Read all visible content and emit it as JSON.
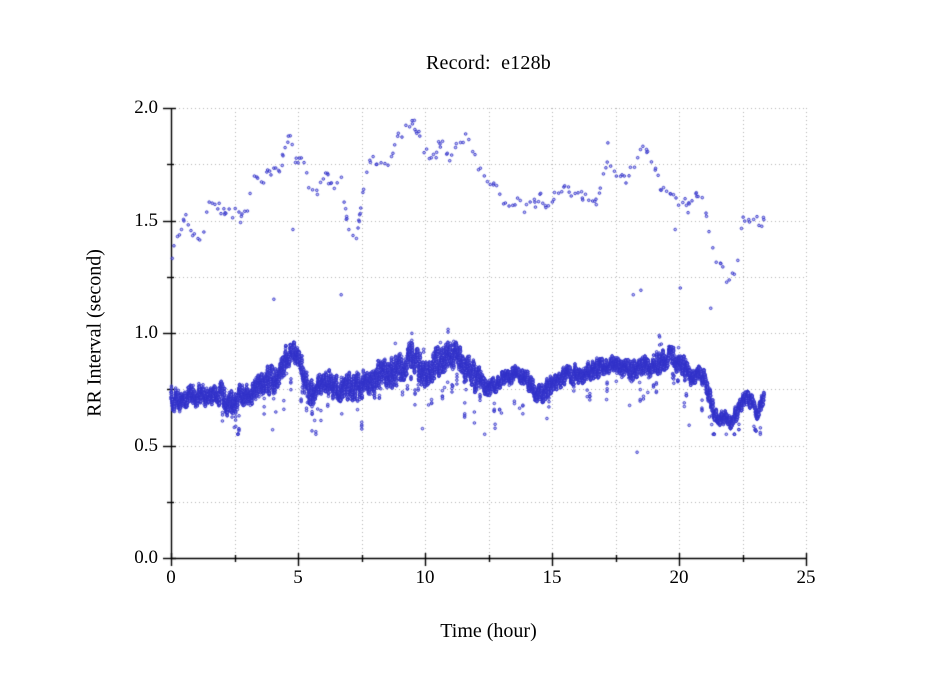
{
  "chart_data": {
    "type": "scatter",
    "title": "Record:  e128b",
    "xlabel": "Time (hour)",
    "ylabel": "RR Interval (second)",
    "xlim": [
      0,
      25
    ],
    "ylim": [
      0.0,
      2.0
    ],
    "x_major_ticks": [
      0,
      5,
      10,
      15,
      20,
      25
    ],
    "x_tick_labels": [
      "0",
      "5",
      "10",
      "15",
      "20",
      "25"
    ],
    "x_minor_step": 2.5,
    "y_major_ticks": [
      0.0,
      0.5,
      1.0,
      1.5,
      2.0
    ],
    "y_tick_labels": [
      "0.0",
      "0.5",
      "1.0",
      "1.5",
      "2.0"
    ],
    "y_minor_step": 0.25,
    "grid": {
      "on": true,
      "style": "dotted",
      "color": "#b4b4b4"
    },
    "legend": "none",
    "marker": {
      "shape": "open-circle",
      "color": "#3030c8",
      "radius_px": 1.3
    },
    "time_range_hours": [
      0,
      23.35
    ],
    "series": [
      {
        "name": "RR intervals (normal beats, dense band)",
        "role": "band",
        "approx_points": 11000,
        "trend_t_center_halfwidth": [
          [
            0.0,
            0.72,
            0.07
          ],
          [
            0.4,
            0.705,
            0.06
          ],
          [
            0.8,
            0.715,
            0.065
          ],
          [
            1.2,
            0.7,
            0.068
          ],
          [
            1.6,
            0.675,
            0.06
          ],
          [
            2.0,
            0.715,
            0.075
          ],
          [
            2.4,
            0.69,
            0.078
          ],
          [
            2.8,
            0.73,
            0.075
          ],
          [
            3.2,
            0.75,
            0.078
          ],
          [
            3.6,
            0.77,
            0.08
          ],
          [
            4.0,
            0.79,
            0.085
          ],
          [
            4.4,
            0.86,
            0.075
          ],
          [
            4.8,
            0.895,
            0.06
          ],
          [
            5.1,
            0.84,
            0.075
          ],
          [
            5.4,
            0.74,
            0.08
          ],
          [
            5.7,
            0.71,
            0.075
          ],
          [
            6.0,
            0.75,
            0.075
          ],
          [
            6.4,
            0.73,
            0.075
          ],
          [
            6.8,
            0.74,
            0.08
          ],
          [
            7.2,
            0.77,
            0.085
          ],
          [
            7.6,
            0.79,
            0.085
          ],
          [
            8.0,
            0.795,
            0.09
          ],
          [
            8.4,
            0.84,
            0.095
          ],
          [
            8.8,
            0.82,
            0.095
          ],
          [
            9.2,
            0.86,
            0.09
          ],
          [
            9.5,
            0.89,
            0.08
          ],
          [
            9.8,
            0.82,
            0.095
          ],
          [
            10.1,
            0.8,
            0.09
          ],
          [
            10.5,
            0.86,
            0.085
          ],
          [
            10.9,
            0.88,
            0.085
          ],
          [
            11.3,
            0.86,
            0.09
          ],
          [
            11.7,
            0.84,
            0.09
          ],
          [
            12.0,
            0.81,
            0.08
          ],
          [
            12.4,
            0.76,
            0.05
          ],
          [
            12.8,
            0.77,
            0.045
          ],
          [
            13.2,
            0.785,
            0.045
          ],
          [
            13.6,
            0.8,
            0.045
          ],
          [
            14.0,
            0.78,
            0.055
          ],
          [
            14.4,
            0.755,
            0.06
          ],
          [
            14.8,
            0.77,
            0.06
          ],
          [
            15.2,
            0.8,
            0.055
          ],
          [
            15.6,
            0.81,
            0.055
          ],
          [
            16.0,
            0.815,
            0.055
          ],
          [
            16.4,
            0.835,
            0.055
          ],
          [
            16.8,
            0.83,
            0.06
          ],
          [
            17.2,
            0.855,
            0.055
          ],
          [
            17.6,
            0.855,
            0.06
          ],
          [
            18.0,
            0.825,
            0.07
          ],
          [
            18.4,
            0.85,
            0.065
          ],
          [
            18.8,
            0.865,
            0.065
          ],
          [
            19.2,
            0.875,
            0.065
          ],
          [
            19.6,
            0.905,
            0.06
          ],
          [
            20.0,
            0.875,
            0.07
          ],
          [
            20.4,
            0.815,
            0.065
          ],
          [
            20.7,
            0.825,
            0.05
          ],
          [
            21.0,
            0.805,
            0.055
          ],
          [
            21.2,
            0.74,
            0.06
          ],
          [
            21.4,
            0.645,
            0.05
          ],
          [
            21.7,
            0.625,
            0.045
          ],
          [
            22.0,
            0.615,
            0.045
          ],
          [
            22.3,
            0.655,
            0.05
          ],
          [
            22.6,
            0.725,
            0.045
          ],
          [
            22.9,
            0.695,
            0.045
          ],
          [
            23.1,
            0.66,
            0.045
          ],
          [
            23.35,
            0.725,
            0.04
          ]
        ],
        "value_range": [
          0.55,
          1.04
        ]
      },
      {
        "name": "Long RR outliers (~2x intervals, sparse cloud)",
        "role": "cloud",
        "approx_points": 260,
        "spread": 0.055,
        "trend_t_value": [
          [
            0.0,
            1.35
          ],
          [
            0.3,
            1.42
          ],
          [
            0.6,
            1.52
          ],
          [
            0.9,
            1.4
          ],
          [
            1.2,
            1.38
          ],
          [
            1.5,
            1.55
          ],
          [
            1.8,
            1.57
          ],
          [
            2.1,
            1.54
          ],
          [
            2.4,
            1.52
          ],
          [
            2.7,
            1.515
          ],
          [
            3.0,
            1.52
          ],
          [
            3.3,
            1.65
          ],
          [
            3.6,
            1.61
          ],
          [
            3.9,
            1.68
          ],
          [
            4.2,
            1.755
          ],
          [
            4.5,
            1.78
          ],
          [
            4.7,
            1.84
          ],
          [
            4.9,
            1.77
          ],
          [
            5.2,
            1.8
          ],
          [
            5.5,
            1.65
          ],
          [
            5.8,
            1.64
          ],
          [
            6.1,
            1.68
          ],
          [
            6.4,
            1.67
          ],
          [
            6.7,
            1.7
          ],
          [
            7.0,
            1.48
          ],
          [
            7.3,
            1.43
          ],
          [
            7.6,
            1.61
          ],
          [
            7.9,
            1.79
          ],
          [
            8.2,
            1.74
          ],
          [
            8.5,
            1.77
          ],
          [
            8.8,
            1.82
          ],
          [
            9.1,
            1.86
          ],
          [
            9.4,
            1.93
          ],
          [
            9.6,
            1.96
          ],
          [
            9.8,
            1.9
          ],
          [
            10.1,
            1.81
          ],
          [
            10.4,
            1.78
          ],
          [
            10.7,
            1.83
          ],
          [
            11.0,
            1.8
          ],
          [
            11.3,
            1.85
          ],
          [
            11.6,
            1.88
          ],
          [
            11.9,
            1.8
          ],
          [
            12.2,
            1.71
          ],
          [
            12.5,
            1.67
          ],
          [
            12.8,
            1.62
          ],
          [
            13.1,
            1.6
          ],
          [
            13.4,
            1.56
          ],
          [
            13.7,
            1.58
          ],
          [
            14.0,
            1.55
          ],
          [
            14.3,
            1.62
          ],
          [
            14.6,
            1.6
          ],
          [
            14.9,
            1.58
          ],
          [
            15.2,
            1.62
          ],
          [
            15.5,
            1.6
          ],
          [
            15.8,
            1.63
          ],
          [
            16.1,
            1.6
          ],
          [
            16.4,
            1.63
          ],
          [
            16.7,
            1.62
          ],
          [
            17.0,
            1.7
          ],
          [
            17.3,
            1.75
          ],
          [
            17.6,
            1.67
          ],
          [
            17.9,
            1.66
          ],
          [
            18.2,
            1.7
          ],
          [
            18.5,
            1.78
          ],
          [
            18.8,
            1.77
          ],
          [
            19.1,
            1.68
          ],
          [
            19.4,
            1.62
          ],
          [
            19.7,
            1.59
          ],
          [
            20.0,
            1.57
          ],
          [
            20.3,
            1.55
          ],
          [
            20.6,
            1.63
          ],
          [
            20.9,
            1.66
          ],
          [
            21.1,
            1.57
          ],
          [
            21.3,
            1.44
          ],
          [
            21.5,
            1.31
          ],
          [
            21.7,
            1.3
          ],
          [
            21.9,
            1.21
          ],
          [
            22.1,
            1.2
          ],
          [
            22.3,
            1.3
          ],
          [
            22.5,
            1.5
          ],
          [
            22.7,
            1.52
          ],
          [
            22.9,
            1.48
          ],
          [
            23.1,
            1.47
          ],
          [
            23.3,
            1.5
          ]
        ],
        "value_range": [
          1.1,
          1.97
        ]
      }
    ],
    "extra_points": {
      "mid_gap": [
        [
          4.05,
          1.15
        ],
        [
          4.8,
          1.46
        ],
        [
          6.7,
          1.17
        ],
        [
          18.2,
          1.17
        ],
        [
          18.5,
          1.19
        ],
        [
          19.85,
          1.46
        ],
        [
          20.05,
          1.2
        ],
        [
          21.25,
          1.11
        ]
      ],
      "low_outliers": [
        [
          2.55,
          0.585
        ],
        [
          4.0,
          0.57
        ],
        [
          5.55,
          0.565
        ],
        [
          9.9,
          0.575
        ],
        [
          12.35,
          0.55
        ],
        [
          14.8,
          0.62
        ],
        [
          18.35,
          0.47
        ],
        [
          20.4,
          0.59
        ],
        [
          22.95,
          0.585
        ]
      ],
      "high_outliers": [
        [
          4.62,
          1.875
        ],
        [
          17.2,
          1.845
        ]
      ]
    }
  }
}
